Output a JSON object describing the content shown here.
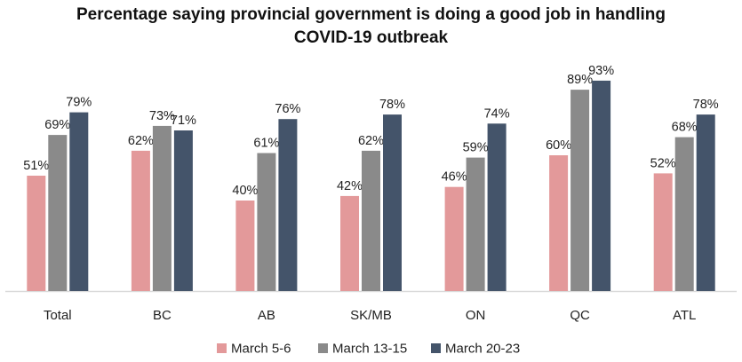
{
  "chart_data": {
    "type": "bar",
    "title_lines": [
      "Percentage saying provincial government is doing a good job in handling",
      "COVID-19 outbreak"
    ],
    "categories": [
      "Total",
      "BC",
      "AB",
      "SK/MB",
      "ON",
      "QC",
      "ATL"
    ],
    "series": [
      {
        "name": "March 5-6",
        "color": "#e3999a",
        "values": [
          51,
          62,
          40,
          42,
          46,
          60,
          52
        ],
        "labels": [
          "51%",
          "62%",
          "40%",
          "42%",
          "46%",
          "60%",
          "52%"
        ]
      },
      {
        "name": "March 13-15",
        "color": "#8a8a8a",
        "values": [
          69,
          73,
          61,
          62,
          59,
          89,
          68
        ],
        "labels": [
          "69%",
          "73%",
          "61%",
          "62%",
          "59%",
          "89%",
          "68%"
        ]
      },
      {
        "name": "March 20-23",
        "color": "#44546a",
        "values": [
          79,
          71,
          76,
          78,
          74,
          93,
          78
        ],
        "labels": [
          "79%",
          "71%",
          "76%",
          "78%",
          "74%",
          "93%",
          "78%"
        ]
      }
    ],
    "ylim": [
      0,
      100
    ],
    "grid": false,
    "legend_position": "bottom",
    "axis_color": "#d9d9d9"
  }
}
